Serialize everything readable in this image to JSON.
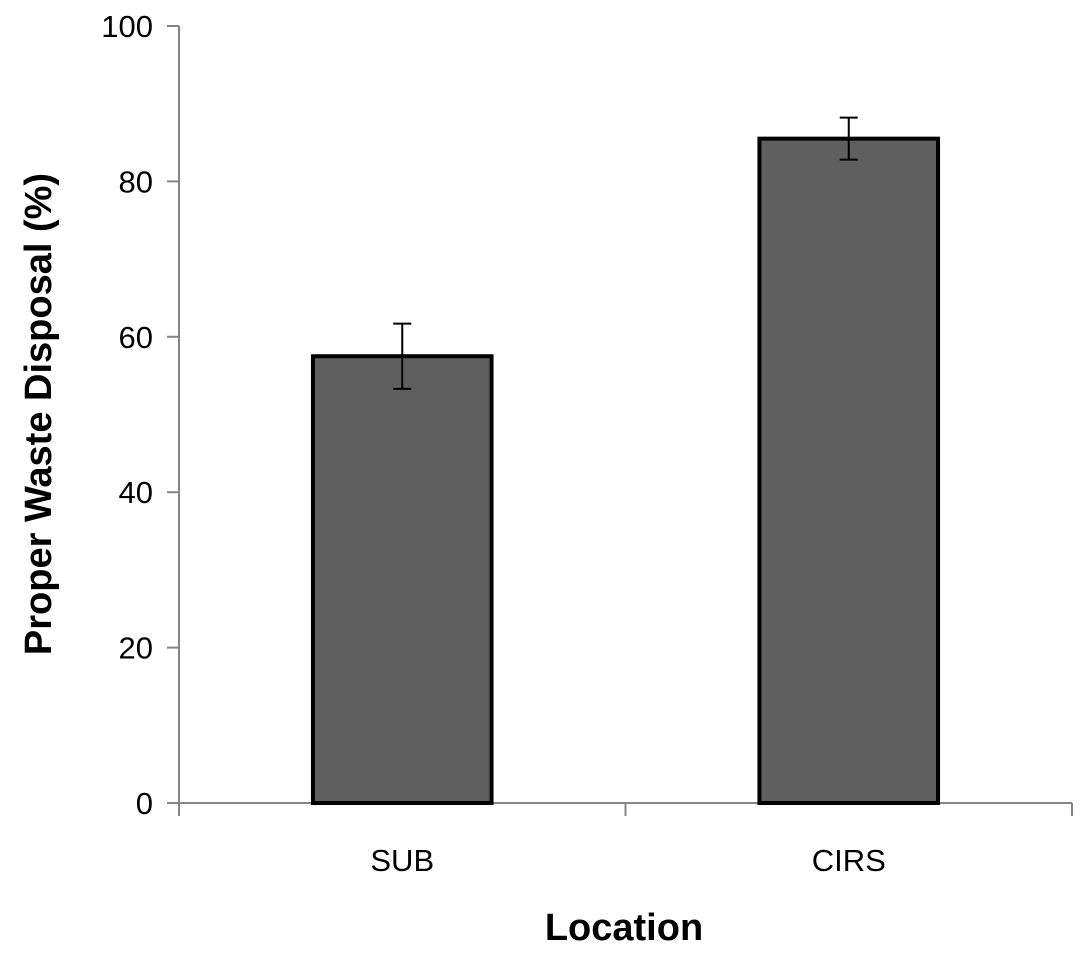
{
  "chart_data": {
    "type": "bar",
    "title": "",
    "xlabel": "Location",
    "ylabel": "Proper Waste Disposal (%)",
    "categories": [
      "SUB",
      "CIRS"
    ],
    "series": [
      {
        "values": [
          57.5,
          85.5
        ],
        "error": [
          4.2,
          2.7
        ]
      }
    ],
    "ylim": [
      0,
      100
    ],
    "yticks": [
      0,
      20,
      40,
      60,
      80,
      100
    ],
    "ytick_labels": [
      "0",
      "20",
      "40",
      "60",
      "80",
      "100"
    ],
    "grid": false,
    "legend": "none",
    "colors": {
      "bar_fill": "#5f5f5f",
      "bar_edge": "#000000",
      "axis": "#858585",
      "error_bar": "#000000"
    }
  }
}
